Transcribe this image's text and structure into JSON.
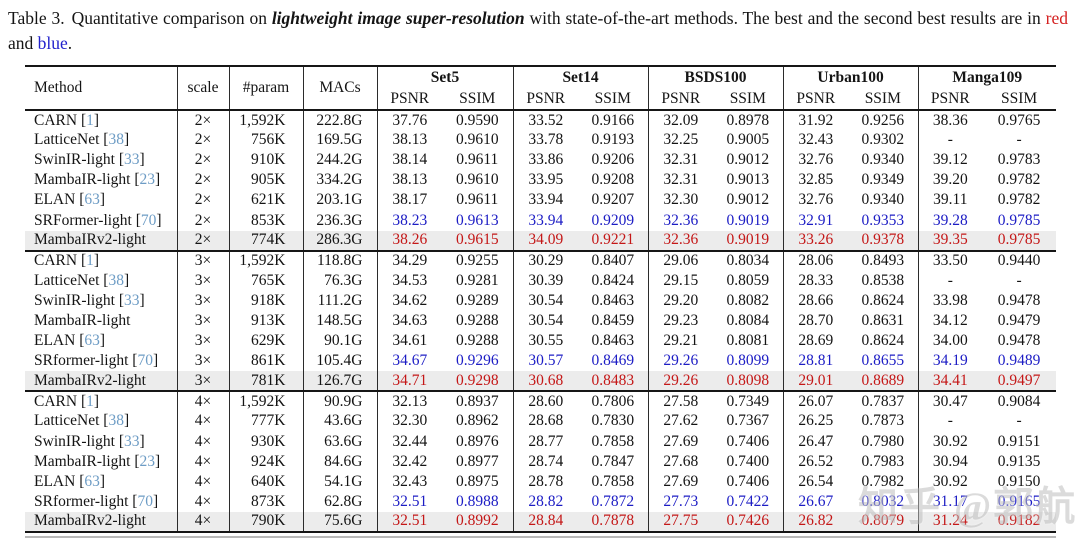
{
  "caption": {
    "prefix": "Table 3.",
    "lead": "Quantitative comparison on",
    "emph": "lightweight image super-resolution",
    "mid": "with state-of-the-art methods.  The best and the second best results are in",
    "red_word": "red",
    "conj": "and",
    "blue_word": "blue",
    "end": "."
  },
  "colors": {
    "best_red": "#c41717",
    "second_blue": "#1c1cc4",
    "citation_blue": "#6d9cc5",
    "highlight_row_bg": "#ececec"
  },
  "watermark": {
    "text": "知乎 @郭航"
  },
  "table": {
    "columns": [
      "Method",
      "scale",
      "#param",
      "MACs"
    ],
    "groups": [
      {
        "name": "Set5",
        "sub": [
          "PSNR",
          "SSIM"
        ]
      },
      {
        "name": "Set14",
        "sub": [
          "PSNR",
          "SSIM"
        ]
      },
      {
        "name": "BSDS100",
        "sub": [
          "PSNR",
          "SSIM"
        ]
      },
      {
        "name": "Urban100",
        "sub": [
          "PSNR",
          "SSIM"
        ]
      },
      {
        "name": "Manga109",
        "sub": [
          "PSNR",
          "SSIM"
        ]
      }
    ],
    "blocks": [
      {
        "scale": "2×",
        "rows": [
          {
            "method": "CARN",
            "ref": "1",
            "scale": "2×",
            "param": "1,592K",
            "macs": "222.8G",
            "color": "black",
            "highlight": false,
            "metrics": [
              "37.76",
              "0.9590",
              "33.52",
              "0.9166",
              "32.09",
              "0.8978",
              "31.92",
              "0.9256",
              "38.36",
              "0.9765"
            ]
          },
          {
            "method": "LatticeNet",
            "ref": "38",
            "scale": "2×",
            "param": "756K",
            "macs": "169.5G",
            "color": "black",
            "highlight": false,
            "metrics": [
              "38.13",
              "0.9610",
              "33.78",
              "0.9193",
              "32.25",
              "0.9005",
              "32.43",
              "0.9302",
              "-",
              "-"
            ]
          },
          {
            "method": "SwinIR-light",
            "ref": "33",
            "scale": "2×",
            "param": "910K",
            "macs": "244.2G",
            "color": "black",
            "highlight": false,
            "metrics": [
              "38.14",
              "0.9611",
              "33.86",
              "0.9206",
              "32.31",
              "0.9012",
              "32.76",
              "0.9340",
              "39.12",
              "0.9783"
            ]
          },
          {
            "method": "MambaIR-light",
            "ref": "23",
            "scale": "2×",
            "param": "905K",
            "macs": "334.2G",
            "color": "black",
            "highlight": false,
            "metrics": [
              "38.13",
              "0.9610",
              "33.95",
              "0.9208",
              "32.31",
              "0.9013",
              "32.85",
              "0.9349",
              "39.20",
              "0.9782"
            ]
          },
          {
            "method": "ELAN",
            "ref": "63",
            "scale": "2×",
            "param": "621K",
            "macs": "203.1G",
            "color": "black",
            "highlight": false,
            "metrics": [
              "38.17",
              "0.9611",
              "33.94",
              "0.9207",
              "32.30",
              "0.9012",
              "32.76",
              "0.9340",
              "39.11",
              "0.9782"
            ]
          },
          {
            "method": "SRFormer-light",
            "ref": "70",
            "scale": "2×",
            "param": "853K",
            "macs": "236.3G",
            "color": "blue",
            "highlight": false,
            "metrics": [
              "38.23",
              "0.9613",
              "33.94",
              "0.9209",
              "32.36",
              "0.9019",
              "32.91",
              "0.9353",
              "39.28",
              "0.9785"
            ]
          },
          {
            "method": "MambaIRv2-light",
            "ref": "",
            "scale": "2×",
            "param": "774K",
            "macs": "286.3G",
            "color": "red",
            "highlight": true,
            "metrics": [
              "38.26",
              "0.9615",
              "34.09",
              "0.9221",
              "32.36",
              "0.9019",
              "33.26",
              "0.9378",
              "39.35",
              "0.9785"
            ]
          }
        ]
      },
      {
        "scale": "3×",
        "rows": [
          {
            "method": "CARN",
            "ref": "1",
            "scale": "3×",
            "param": "1,592K",
            "macs": "118.8G",
            "color": "black",
            "highlight": false,
            "metrics": [
              "34.29",
              "0.9255",
              "30.29",
              "0.8407",
              "29.06",
              "0.8034",
              "28.06",
              "0.8493",
              "33.50",
              "0.9440"
            ]
          },
          {
            "method": "LatticeNet",
            "ref": "38",
            "scale": "3×",
            "param": "765K",
            "macs": "76.3G",
            "color": "black",
            "highlight": false,
            "metrics": [
              "34.53",
              "0.9281",
              "30.39",
              "0.8424",
              "29.15",
              "0.8059",
              "28.33",
              "0.8538",
              "-",
              "-"
            ]
          },
          {
            "method": "SwinIR-light",
            "ref": "33",
            "scale": "3×",
            "param": "918K",
            "macs": "111.2G",
            "color": "black",
            "highlight": false,
            "metrics": [
              "34.62",
              "0.9289",
              "30.54",
              "0.8463",
              "29.20",
              "0.8082",
              "28.66",
              "0.8624",
              "33.98",
              "0.9478"
            ]
          },
          {
            "method": "MambaIR-light",
            "ref": "",
            "scale": "3×",
            "param": "913K",
            "macs": "148.5G",
            "color": "black",
            "highlight": false,
            "metrics": [
              "34.63",
              "0.9288",
              "30.54",
              "0.8459",
              "29.23",
              "0.8084",
              "28.70",
              "0.8631",
              "34.12",
              "0.9479"
            ]
          },
          {
            "method": "ELAN",
            "ref": "63",
            "scale": "3×",
            "param": "629K",
            "macs": "90.1G",
            "color": "black",
            "highlight": false,
            "metrics": [
              "34.61",
              "0.9288",
              "30.55",
              "0.8463",
              "29.21",
              "0.8081",
              "28.69",
              "0.8624",
              "34.00",
              "0.9478"
            ]
          },
          {
            "method": "SRformer-light",
            "ref": "70",
            "scale": "3×",
            "param": "861K",
            "macs": "105.4G",
            "color": "blue",
            "highlight": false,
            "metrics": [
              "34.67",
              "0.9296",
              "30.57",
              "0.8469",
              "29.26",
              "0.8099",
              "28.81",
              "0.8655",
              "34.19",
              "0.9489"
            ]
          },
          {
            "method": "MambaIRv2-light",
            "ref": "",
            "scale": "3×",
            "param": "781K",
            "macs": "126.7G",
            "color": "red",
            "highlight": true,
            "metrics": [
              "34.71",
              "0.9298",
              "30.68",
              "0.8483",
              "29.26",
              "0.8098",
              "29.01",
              "0.8689",
              "34.41",
              "0.9497"
            ]
          }
        ]
      },
      {
        "scale": "4×",
        "rows": [
          {
            "method": "CARN",
            "ref": "1",
            "scale": "4×",
            "param": "1,592K",
            "macs": "90.9G",
            "color": "black",
            "highlight": false,
            "metrics": [
              "32.13",
              "0.8937",
              "28.60",
              "0.7806",
              "27.58",
              "0.7349",
              "26.07",
              "0.7837",
              "30.47",
              "0.9084"
            ]
          },
          {
            "method": "LatticeNet",
            "ref": "38",
            "scale": "4×",
            "param": "777K",
            "macs": "43.6G",
            "color": "black",
            "highlight": false,
            "metrics": [
              "32.30",
              "0.8962",
              "28.68",
              "0.7830",
              "27.62",
              "0.7367",
              "26.25",
              "0.7873",
              "-",
              "-"
            ]
          },
          {
            "method": "SwinIR-light",
            "ref": "33",
            "scale": "4×",
            "param": "930K",
            "macs": "63.6G",
            "color": "black",
            "highlight": false,
            "metrics": [
              "32.44",
              "0.8976",
              "28.77",
              "0.7858",
              "27.69",
              "0.7406",
              "26.47",
              "0.7980",
              "30.92",
              "0.9151"
            ]
          },
          {
            "method": "MambaIR-light",
            "ref": "23",
            "scale": "4×",
            "param": "924K",
            "macs": "84.6G",
            "color": "black",
            "highlight": false,
            "metrics": [
              "32.42",
              "0.8977",
              "28.74",
              "0.7847",
              "27.68",
              "0.7400",
              "26.52",
              "0.7983",
              "30.94",
              "0.9135"
            ]
          },
          {
            "method": "ELAN",
            "ref": "63",
            "scale": "4×",
            "param": "640K",
            "macs": "54.1G",
            "color": "black",
            "highlight": false,
            "metrics": [
              "32.43",
              "0.8975",
              "28.78",
              "0.7858",
              "27.69",
              "0.7406",
              "26.54",
              "0.7982",
              "30.92",
              "0.9150"
            ]
          },
          {
            "method": "SRformer-light",
            "ref": "70",
            "scale": "4×",
            "param": "873K",
            "macs": "62.8G",
            "color": "blue",
            "highlight": false,
            "metrics": [
              "32.51",
              "0.8988",
              "28.82",
              "0.7872",
              "27.73",
              "0.7422",
              "26.67",
              "0.8032",
              "31.17",
              "0.9165"
            ]
          },
          {
            "method": "MambaIRv2-light",
            "ref": "",
            "scale": "4×",
            "param": "790K",
            "macs": "75.6G",
            "color": "red",
            "highlight": true,
            "metrics": [
              "32.51",
              "0.8992",
              "28.84",
              "0.7878",
              "27.75",
              "0.7426",
              "26.82",
              "0.8079",
              "31.24",
              "0.9182"
            ]
          }
        ]
      }
    ]
  }
}
